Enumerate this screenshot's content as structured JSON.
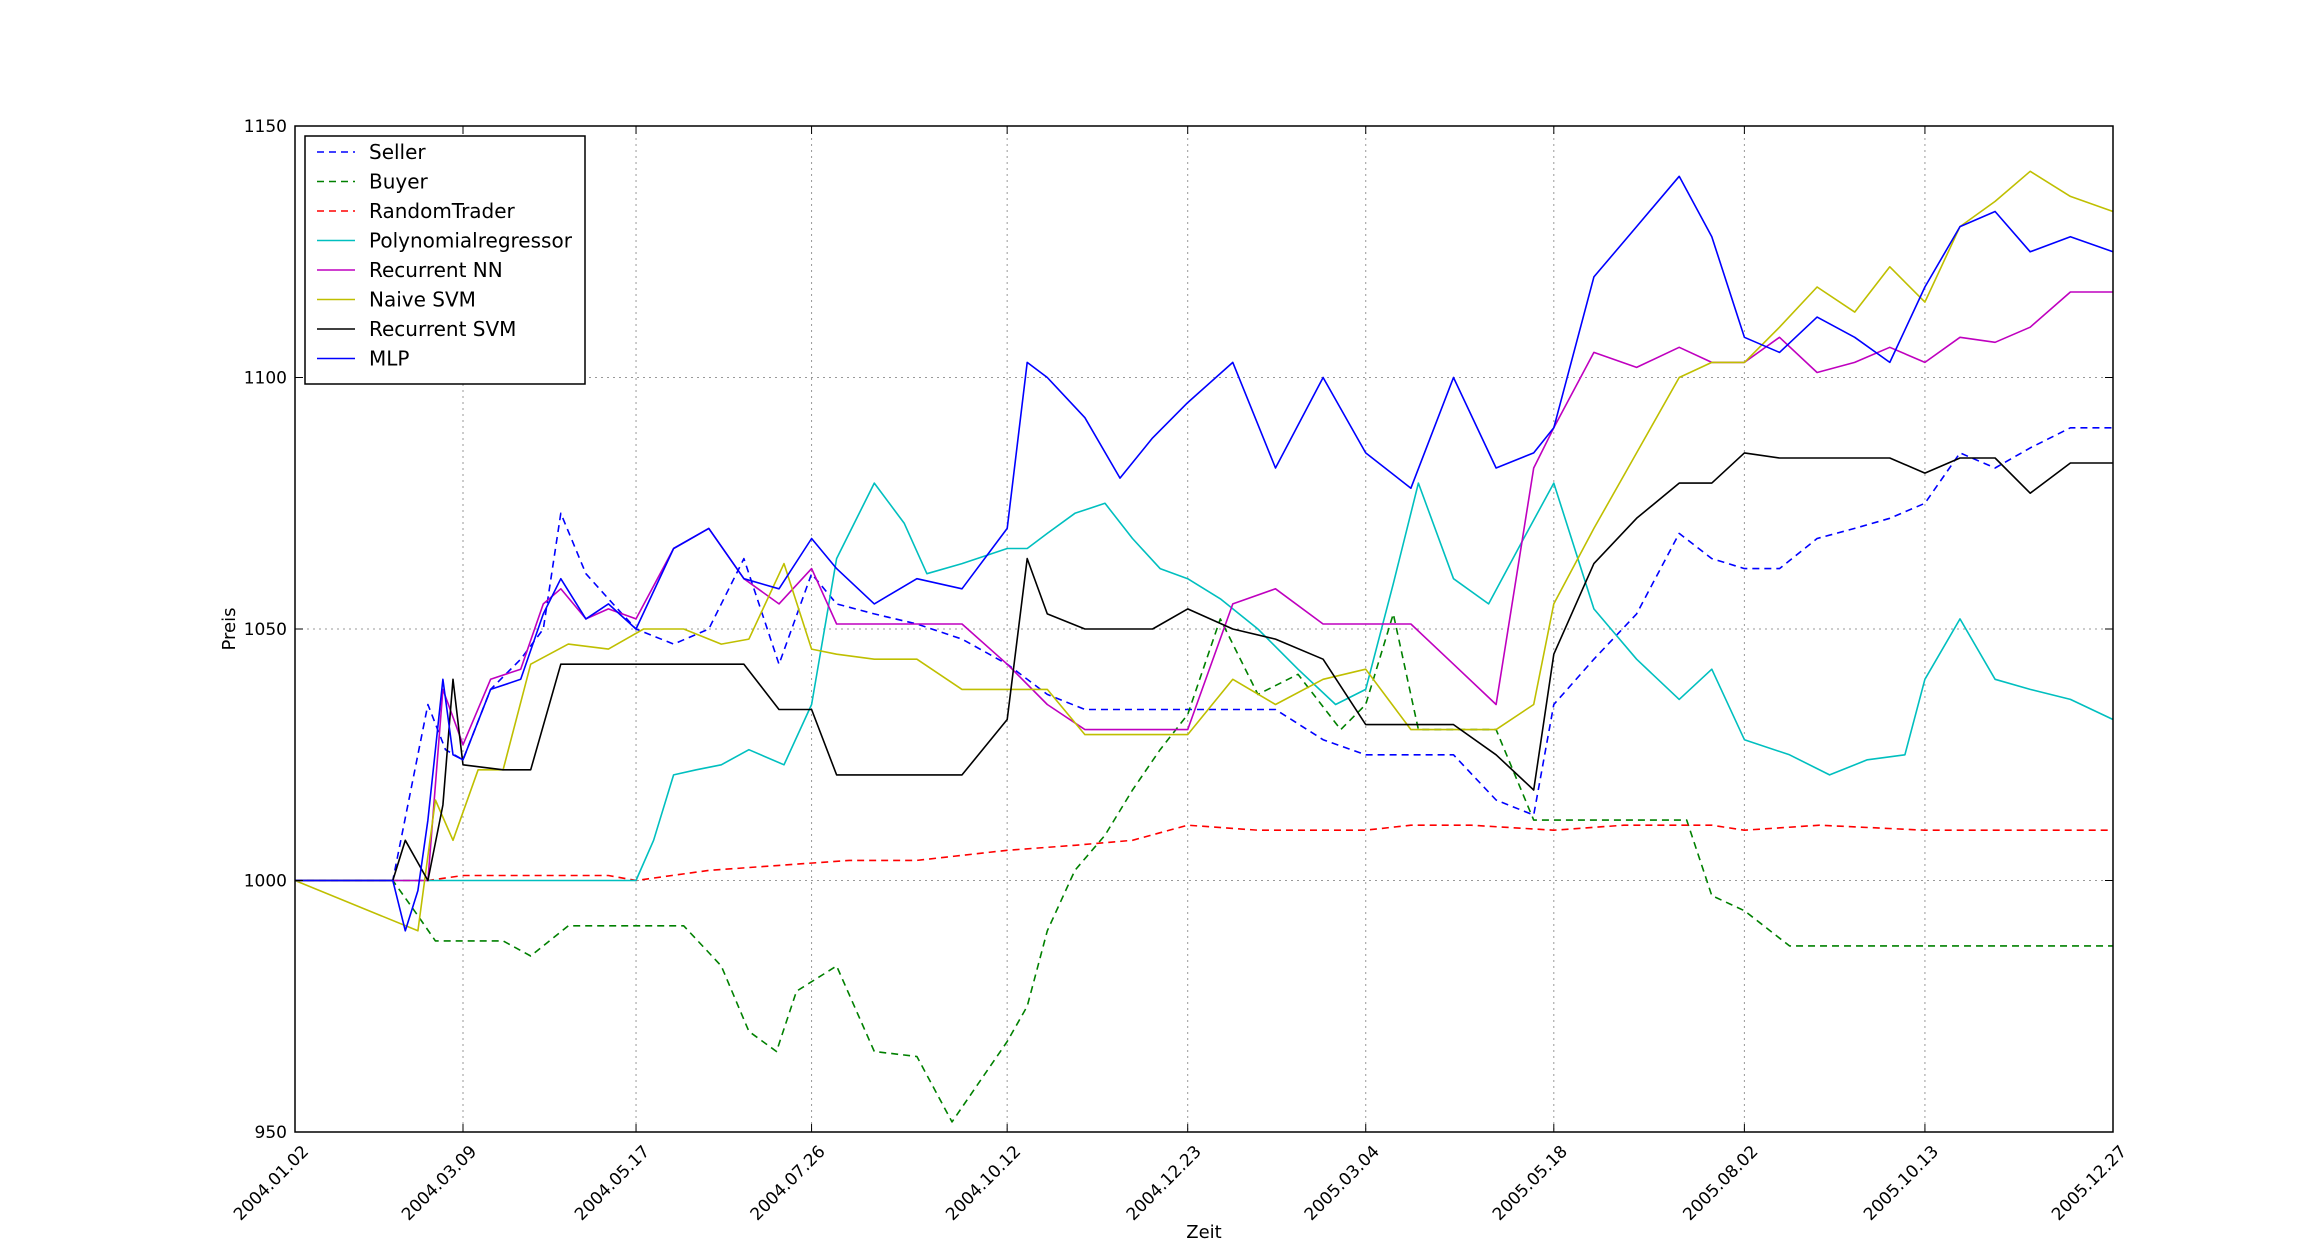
{
  "chart_data": {
    "type": "line",
    "title": "",
    "xlabel": "Zeit",
    "ylabel": "Preis",
    "ylim": [
      950,
      1150
    ],
    "xlim": [
      "2004.01.02",
      "2005.12.27"
    ],
    "x_ticks": [
      "2004.01.02",
      "2004.03.09",
      "2004.05.17",
      "2004.07.26",
      "2004.10.12",
      "2004.12.23",
      "2005.03.04",
      "2005.05.18",
      "2005.08.02",
      "2005.10.13",
      "2005.12.27"
    ],
    "y_ticks": [
      "950",
      "1000",
      "1050",
      "1100",
      "1150"
    ],
    "grid": true,
    "legend_position": "upper-left",
    "series": [
      {
        "name": "Seller",
        "color": "#0000ff",
        "style": "dashed",
        "x": [
          "2004.01.02",
          "2004.02.10",
          "2004.02.24",
          "2004.03.02",
          "2004.03.09",
          "2004.03.20",
          "2004.04.01",
          "2004.04.10",
          "2004.04.17",
          "2004.04.27",
          "2004.05.06",
          "2004.05.17",
          "2004.06.01",
          "2004.06.15",
          "2004.06.29",
          "2004.07.13",
          "2004.07.26",
          "2004.08.05",
          "2004.08.20",
          "2004.09.06",
          "2004.09.24",
          "2004.10.12",
          "2004.10.28",
          "2004.11.12",
          "2004.11.26",
          "2004.12.09",
          "2004.12.23",
          "2005.01.10",
          "2005.01.27",
          "2005.02.15",
          "2005.03.04",
          "2005.03.22",
          "2005.04.08",
          "2005.04.25",
          "2005.05.10",
          "2005.05.18",
          "2005.06.03",
          "2005.06.20",
          "2005.07.07",
          "2005.07.20",
          "2005.08.02",
          "2005.08.16",
          "2005.08.31",
          "2005.09.15",
          "2005.09.29",
          "2005.10.13",
          "2005.10.27",
          "2005.11.10",
          "2005.11.24",
          "2005.12.10",
          "2005.12.27"
        ],
        "y": [
          1000,
          1000,
          1035,
          1026,
          1024,
          1038,
          1044,
          1050,
          1073,
          1061,
          1056,
          1050,
          1047,
          1050,
          1064,
          1043,
          1061,
          1055,
          1053,
          1051,
          1048,
          1043,
          1037,
          1034,
          1034,
          1034,
          1034,
          1034,
          1034,
          1028,
          1025,
          1025,
          1025,
          1016,
          1013,
          1035,
          1044,
          1053,
          1069,
          1064,
          1062,
          1062,
          1068,
          1070,
          1072,
          1075,
          1085,
          1082,
          1086,
          1090,
          1090
        ]
      },
      {
        "name": "Buyer",
        "color": "#008000",
        "style": "dashed",
        "x": [
          "2004.01.02",
          "2004.02.10",
          "2004.02.20",
          "2004.02.27",
          "2004.03.09",
          "2004.03.25",
          "2004.04.05",
          "2004.04.20",
          "2004.05.06",
          "2004.05.20",
          "2004.06.05",
          "2004.06.20",
          "2004.07.01",
          "2004.07.12",
          "2004.07.20",
          "2004.08.05",
          "2004.08.20",
          "2004.09.06",
          "2004.09.20",
          "2004.10.01",
          "2004.10.12",
          "2004.10.20",
          "2004.10.28",
          "2004.11.08",
          "2004.11.20",
          "2004.12.01",
          "2004.12.12",
          "2004.12.23",
          "2005.01.05",
          "2005.01.20",
          "2005.02.05",
          "2005.02.22",
          "2005.03.04",
          "2005.03.15",
          "2005.03.25",
          "2005.04.08",
          "2005.04.25",
          "2005.05.10",
          "2005.05.18",
          "2005.06.05",
          "2005.06.25",
          "2005.07.10",
          "2005.07.20",
          "2005.08.02",
          "2005.08.20",
          "2005.09.15",
          "2005.10.13",
          "2005.11.15",
          "2005.12.27"
        ],
        "y": [
          1000,
          1000,
          993,
          988,
          988,
          988,
          985,
          991,
          991,
          991,
          991,
          983,
          970,
          966,
          978,
          983,
          966,
          965,
          952,
          960,
          968,
          975,
          990,
          1002,
          1009,
          1018,
          1026,
          1033,
          1052,
          1037,
          1041,
          1030,
          1035,
          1053,
          1030,
          1030,
          1030,
          1012,
          1012,
          1012,
          1012,
          1012,
          997,
          994,
          987,
          987,
          987,
          987,
          987
        ]
      },
      {
        "name": "RandomTrader",
        "color": "#ff0000",
        "style": "dashed",
        "x": [
          "2004.01.02",
          "2004.02.10",
          "2004.02.24",
          "2004.03.09",
          "2004.04.05",
          "2004.05.06",
          "2004.05.17",
          "2004.06.15",
          "2004.07.13",
          "2004.08.10",
          "2004.09.06",
          "2004.10.12",
          "2004.11.08",
          "2004.12.01",
          "2004.12.23",
          "2005.01.20",
          "2005.02.15",
          "2005.03.04",
          "2005.03.22",
          "2005.04.15",
          "2005.05.18",
          "2005.06.15",
          "2005.07.20",
          "2005.08.02",
          "2005.09.01",
          "2005.10.13",
          "2005.11.15",
          "2005.12.27"
        ],
        "y": [
          1000,
          1000,
          1000,
          1001,
          1001,
          1001,
          1000,
          1002,
          1003,
          1004,
          1004,
          1006,
          1007,
          1008,
          1011,
          1010,
          1010,
          1010,
          1011,
          1011,
          1010,
          1011,
          1011,
          1010,
          1011,
          1010,
          1010,
          1010
        ]
      },
      {
        "name": "Polynomialregressor",
        "color": "#00bfbf",
        "style": "solid",
        "x": [
          "2004.01.02",
          "2004.02.24",
          "2004.03.09",
          "2004.04.05",
          "2004.04.27",
          "2004.05.17",
          "2004.05.24",
          "2004.06.01",
          "2004.06.10",
          "2004.06.20",
          "2004.07.01",
          "2004.07.15",
          "2004.07.26",
          "2004.08.05",
          "2004.08.20",
          "2004.09.01",
          "2004.09.10",
          "2004.09.24",
          "2004.10.12",
          "2004.10.20",
          "2004.10.28",
          "2004.11.08",
          "2004.11.20",
          "2004.12.01",
          "2004.12.12",
          "2004.12.23",
          "2005.01.05",
          "2005.01.20",
          "2005.02.05",
          "2005.02.20",
          "2005.03.04",
          "2005.03.15",
          "2005.03.25",
          "2005.04.08",
          "2005.04.22",
          "2005.05.06",
          "2005.05.18",
          "2005.06.03",
          "2005.06.20",
          "2005.07.07",
          "2005.07.20",
          "2005.08.02",
          "2005.08.20",
          "2005.09.05",
          "2005.09.20",
          "2005.10.05",
          "2005.10.13",
          "2005.10.27",
          "2005.11.10",
          "2005.11.24",
          "2005.12.10",
          "2005.12.27"
        ],
        "y": [
          1000,
          1000,
          1000,
          1000,
          1000,
          1000,
          1008,
          1021,
          1022,
          1023,
          1026,
          1023,
          1035,
          1064,
          1079,
          1071,
          1061,
          1063,
          1066,
          1066,
          1069,
          1073,
          1075,
          1068,
          1062,
          1060,
          1056,
          1050,
          1042,
          1035,
          1038,
          1059,
          1079,
          1060,
          1055,
          1068,
          1079,
          1054,
          1044,
          1036,
          1042,
          1028,
          1025,
          1021,
          1024,
          1025,
          1040,
          1052,
          1040,
          1038,
          1036,
          1032
        ]
      },
      {
        "name": "Recurrent NN",
        "color": "#bf00bf",
        "style": "solid",
        "x": [
          "2004.01.02",
          "2004.02.24",
          "2004.03.01",
          "2004.03.09",
          "2004.03.20",
          "2004.04.01",
          "2004.04.10",
          "2004.04.17",
          "2004.04.27",
          "2004.05.06",
          "2004.05.17",
          "2004.06.01",
          "2004.06.15",
          "2004.06.29",
          "2004.07.13",
          "2004.07.26",
          "2004.08.05",
          "2004.08.20",
          "2004.09.06",
          "2004.09.24",
          "2004.10.12",
          "2004.10.28",
          "2004.11.12",
          "2004.11.26",
          "2004.12.09",
          "2004.12.23",
          "2005.01.10",
          "2005.01.27",
          "2005.02.15",
          "2005.03.04",
          "2005.03.22",
          "2005.04.08",
          "2005.04.25",
          "2005.05.10",
          "2005.05.18",
          "2005.06.03",
          "2005.06.20",
          "2005.07.07",
          "2005.07.20",
          "2005.08.02",
          "2005.08.16",
          "2005.08.31",
          "2005.09.15",
          "2005.09.29",
          "2005.10.13",
          "2005.10.27",
          "2005.11.10",
          "2005.11.24",
          "2005.12.10",
          "2005.12.27"
        ],
        "y": [
          1000,
          1000,
          1038,
          1027,
          1040,
          1042,
          1055,
          1058,
          1052,
          1054,
          1052,
          1066,
          1070,
          1060,
          1055,
          1062,
          1051,
          1051,
          1051,
          1051,
          1043,
          1035,
          1030,
          1030,
          1030,
          1030,
          1055,
          1058,
          1051,
          1051,
          1051,
          1043,
          1035,
          1082,
          1090,
          1105,
          1102,
          1106,
          1103,
          1103,
          1108,
          1101,
          1103,
          1106,
          1103,
          1108,
          1107,
          1110,
          1117,
          1117
        ]
      },
      {
        "name": "Naive SVM",
        "color": "#bfbf00",
        "style": "solid",
        "x": [
          "2004.01.02",
          "2004.02.20",
          "2004.02.27",
          "2004.03.05",
          "2004.03.15",
          "2004.03.25",
          "2004.04.05",
          "2004.04.20",
          "2004.05.06",
          "2004.05.20",
          "2004.06.05",
          "2004.06.20",
          "2004.07.01",
          "2004.07.15",
          "2004.07.26",
          "2004.08.05",
          "2004.08.20",
          "2004.09.06",
          "2004.09.24",
          "2004.10.12",
          "2004.10.28",
          "2004.11.12",
          "2004.11.26",
          "2004.12.09",
          "2004.12.23",
          "2005.01.10",
          "2005.01.27",
          "2005.02.15",
          "2005.03.04",
          "2005.03.22",
          "2005.04.08",
          "2005.04.25",
          "2005.05.10",
          "2005.05.18",
          "2005.06.03",
          "2005.06.20",
          "2005.07.07",
          "2005.07.20",
          "2005.08.02",
          "2005.08.16",
          "2005.08.31",
          "2005.09.15",
          "2005.09.29",
          "2005.10.13",
          "2005.10.27",
          "2005.11.10",
          "2005.11.24",
          "2005.12.10",
          "2005.12.27"
        ],
        "y": [
          1000,
          990,
          1016,
          1008,
          1022,
          1022,
          1043,
          1047,
          1046,
          1050,
          1050,
          1047,
          1048,
          1063,
          1046,
          1045,
          1044,
          1044,
          1038,
          1038,
          1038,
          1029,
          1029,
          1029,
          1029,
          1040,
          1035,
          1040,
          1042,
          1030,
          1030,
          1030,
          1035,
          1055,
          1070,
          1085,
          1100,
          1103,
          1103,
          1110,
          1118,
          1113,
          1122,
          1115,
          1130,
          1135,
          1141,
          1136,
          1133
        ]
      },
      {
        "name": "Recurrent SVM",
        "color": "#000000",
        "style": "solid",
        "x": [
          "2004.01.02",
          "2004.02.10",
          "2004.02.15",
          "2004.02.24",
          "2004.03.01",
          "2004.03.05",
          "2004.03.09",
          "2004.03.25",
          "2004.04.05",
          "2004.04.17",
          "2004.05.06",
          "2004.06.01",
          "2004.06.29",
          "2004.07.13",
          "2004.07.26",
          "2004.08.05",
          "2004.09.06",
          "2004.09.24",
          "2004.10.12",
          "2004.10.20",
          "2004.10.28",
          "2004.11.12",
          "2004.11.26",
          "2004.12.09",
          "2004.12.23",
          "2005.01.10",
          "2005.01.27",
          "2005.02.15",
          "2005.03.04",
          "2005.03.22",
          "2005.04.08",
          "2005.04.25",
          "2005.05.10",
          "2005.05.18",
          "2005.06.03",
          "2005.06.20",
          "2005.07.07",
          "2005.07.20",
          "2005.08.02",
          "2005.08.16",
          "2005.08.31",
          "2005.09.15",
          "2005.09.29",
          "2005.10.13",
          "2005.10.27",
          "2005.11.10",
          "2005.11.24",
          "2005.12.10",
          "2005.12.27"
        ],
        "y": [
          1000,
          1000,
          1008,
          1000,
          1015,
          1040,
          1023,
          1022,
          1022,
          1043,
          1043,
          1043,
          1043,
          1034,
          1034,
          1021,
          1021,
          1021,
          1032,
          1064,
          1053,
          1050,
          1050,
          1050,
          1054,
          1050,
          1048,
          1044,
          1031,
          1031,
          1031,
          1025,
          1018,
          1045,
          1063,
          1072,
          1079,
          1079,
          1085,
          1084,
          1084,
          1084,
          1084,
          1081,
          1084,
          1084,
          1077,
          1083,
          1083
        ]
      },
      {
        "name": "MLP",
        "color": "#0000ff",
        "style": "solid",
        "x": [
          "2004.01.02",
          "2004.02.10",
          "2004.02.15",
          "2004.02.20",
          "2004.02.24",
          "2004.03.01",
          "2004.03.05",
          "2004.03.09",
          "2004.03.20",
          "2004.04.01",
          "2004.04.10",
          "2004.04.17",
          "2004.04.27",
          "2004.05.06",
          "2004.05.17",
          "2004.06.01",
          "2004.06.15",
          "2004.06.29",
          "2004.07.13",
          "2004.07.26",
          "2004.08.05",
          "2004.08.20",
          "2004.09.06",
          "2004.09.24",
          "2004.10.12",
          "2004.10.20",
          "2004.10.28",
          "2004.11.12",
          "2004.11.26",
          "2004.12.09",
          "2004.12.23",
          "2005.01.10",
          "2005.01.27",
          "2005.02.15",
          "2005.03.04",
          "2005.03.22",
          "2005.04.08",
          "2005.04.25",
          "2005.05.10",
          "2005.05.18",
          "2005.06.03",
          "2005.06.20",
          "2005.07.07",
          "2005.07.20",
          "2005.08.02",
          "2005.08.16",
          "2005.08.31",
          "2005.09.15",
          "2005.09.29",
          "2005.10.13",
          "2005.10.27",
          "2005.11.10",
          "2005.11.24",
          "2005.12.10",
          "2005.12.27"
        ],
        "y": [
          1000,
          1000,
          990,
          998,
          1012,
          1040,
          1025,
          1024,
          1038,
          1040,
          1053,
          1060,
          1052,
          1055,
          1050,
          1066,
          1070,
          1060,
          1058,
          1068,
          1062,
          1055,
          1060,
          1058,
          1070,
          1103,
          1100,
          1092,
          1080,
          1088,
          1095,
          1103,
          1082,
          1100,
          1085,
          1078,
          1100,
          1082,
          1085,
          1090,
          1120,
          1130,
          1140,
          1128,
          1108,
          1105,
          1112,
          1108,
          1103,
          1118,
          1130,
          1133,
          1125,
          1128,
          1125
        ]
      }
    ]
  }
}
